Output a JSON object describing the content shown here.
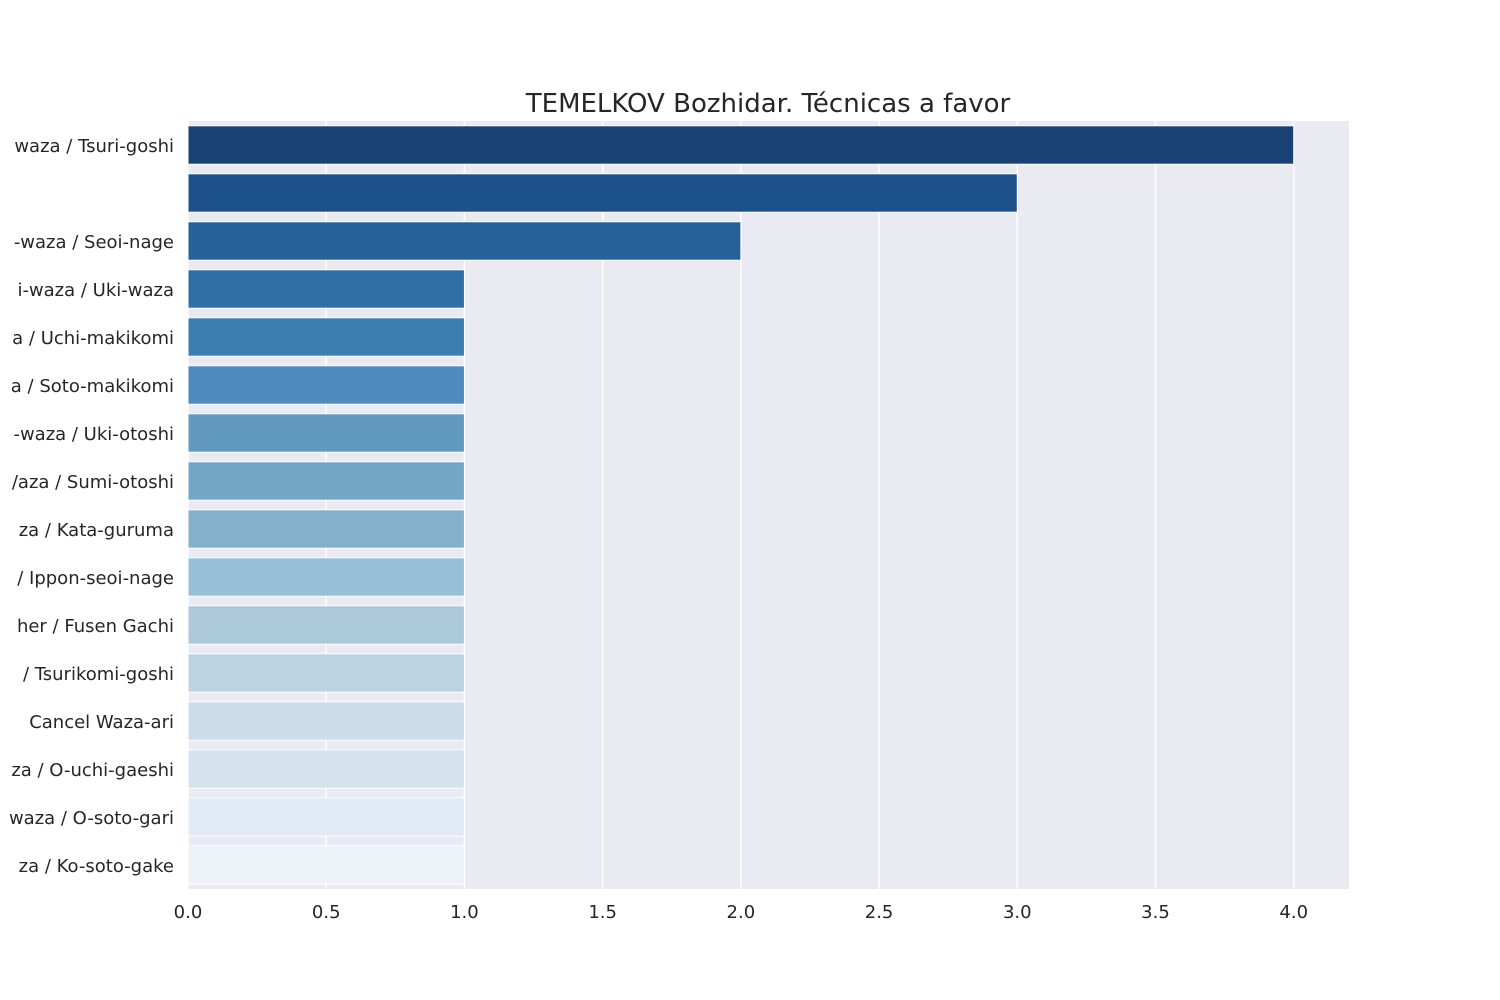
{
  "chart_data": {
    "type": "bar",
    "orientation": "horizontal",
    "title": "TEMELKOV Bozhidar. Técnicas a favor",
    "xlabel": "",
    "ylabel": "",
    "xlim": [
      0,
      4.2
    ],
    "xticks": [
      "0.0",
      "0.5",
      "1.0",
      "1.5",
      "2.0",
      "2.5",
      "3.0",
      "3.5",
      "4.0"
    ],
    "grid": true,
    "categories": [
      "waza / Tsuri-goshi",
      "",
      "-waza / Seoi-nage",
      "i-waza / Uki-waza",
      "a / Uchi-makikomi",
      "a / Soto-makikomi",
      "-waza / Uki-otoshi",
      "/aza / Sumi-otoshi",
      "za / Kata-guruma",
      "/ Ippon-seoi-nage",
      "her / Fusen Gachi",
      "/ Tsurikomi-goshi",
      "Cancel Waza-ari",
      "za / O-uchi-gaeshi",
      "waza / O-soto-gari",
      "za / Ko-soto-gake"
    ],
    "values": [
      4,
      3,
      2,
      1,
      1,
      1,
      1,
      1,
      1,
      1,
      1,
      1,
      1,
      1,
      1,
      1
    ],
    "colors": [
      "#1a4174",
      "#1d5189",
      "#266198",
      "#306fa5",
      "#3d7eb1",
      "#4e8abb",
      "#6199c1",
      "#72a7c8",
      "#83b1cc",
      "#97bfd5",
      "#acc9dc",
      "#bcd3e4",
      "#cbdcea",
      "#d6e3ef",
      "#e2ebf5",
      "#edf2f8"
    ],
    "plot_background": "#eaeaf2",
    "grid_color": "#ffffff"
  }
}
